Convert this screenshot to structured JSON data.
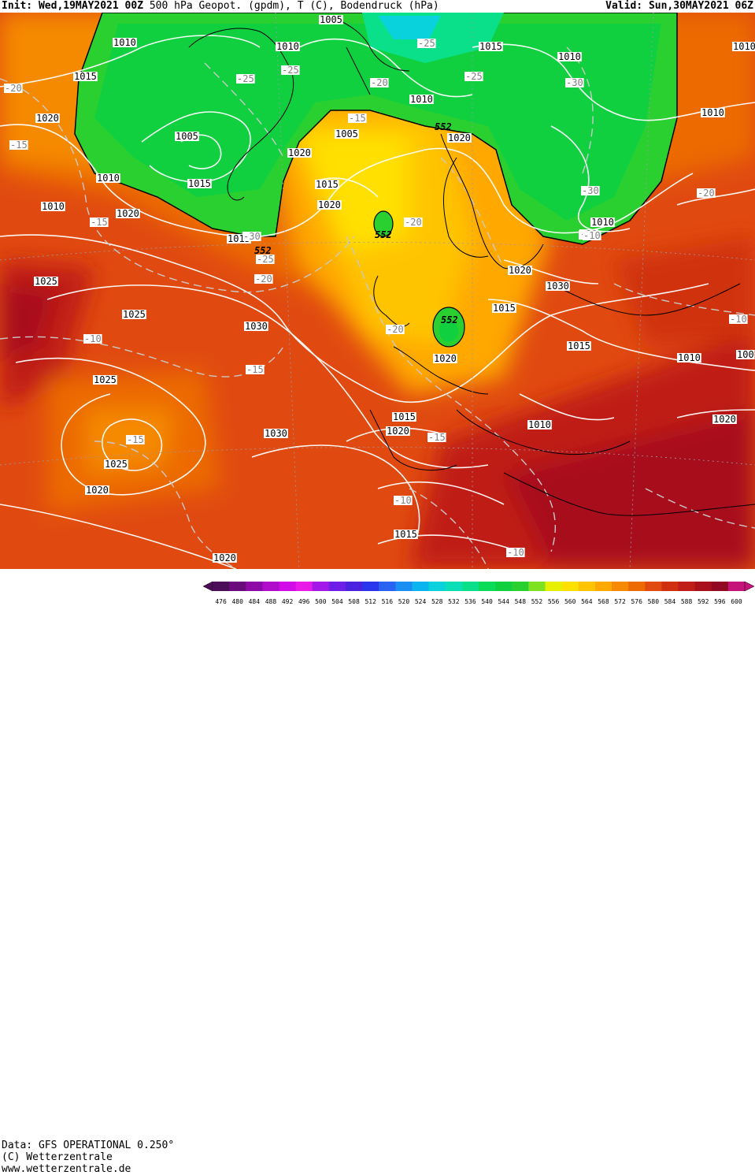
{
  "header": {
    "init_prefix": "Init:",
    "init_value": "Wed,19MAY2021 00Z",
    "title": "500 hPa Geopot. (gpdm), T (C), Bodendruck (hPa)",
    "valid_prefix": "Valid:",
    "valid_value": "Sun,30MAY2021 06Z"
  },
  "footer": {
    "data_line": "Data: GFS OPERATIONAL 0.250°",
    "copyright_line": "(C) Wetterzentrale",
    "url_line": "www.wetterzentrale.de"
  },
  "colorbar": {
    "labels": [
      "476",
      "480",
      "484",
      "488",
      "492",
      "496",
      "500",
      "504",
      "508",
      "512",
      "516",
      "520",
      "524",
      "528",
      "532",
      "536",
      "540",
      "544",
      "548",
      "552",
      "556",
      "560",
      "564",
      "568",
      "572",
      "576",
      "580",
      "584",
      "588",
      "592",
      "596",
      "600"
    ],
    "colors": [
      "#4b0d57",
      "#6a0a7c",
      "#8e0aa6",
      "#b00ccb",
      "#d20ce8",
      "#e71ae7",
      "#a31ae8",
      "#6e1ee6",
      "#4a22e0",
      "#2a36ec",
      "#2a62f2",
      "#1a8ef2",
      "#0ab4ee",
      "#0ad2dc",
      "#0ae0b8",
      "#0ae08a",
      "#0adc5a",
      "#10d040",
      "#2ad030",
      "#7fe21e",
      "#e6f000",
      "#ffe000",
      "#ffc400",
      "#ffa800",
      "#f58a00",
      "#ec6a00",
      "#e04a10",
      "#d03010",
      "#c01c18",
      "#a8101c",
      "#920a22",
      "#c4147c"
    ]
  },
  "map": {
    "pressure_labels": [
      {
        "t": "1005"
      },
      {
        "t": "1010"
      },
      {
        "t": "1010"
      },
      {
        "t": "1015"
      },
      {
        "t": "1010"
      },
      {
        "t": "1015"
      },
      {
        "t": "1020"
      },
      {
        "t": "1005"
      },
      {
        "t": "1005"
      },
      {
        "t": "1020"
      },
      {
        "t": "1010"
      },
      {
        "t": "1020"
      },
      {
        "t": "1010"
      },
      {
        "t": "1015"
      },
      {
        "t": "1010"
      },
      {
        "t": "1015"
      },
      {
        "t": "1020"
      },
      {
        "t": "1015"
      },
      {
        "t": "1020"
      },
      {
        "t": "1010"
      },
      {
        "t": "1025"
      },
      {
        "t": "1020"
      },
      {
        "t": "1025"
      },
      {
        "t": "1030"
      },
      {
        "t": "1030"
      },
      {
        "t": "1015"
      },
      {
        "t": "1015"
      },
      {
        "t": "1010"
      },
      {
        "t": "1010"
      },
      {
        "t": "1010"
      },
      {
        "t": "1025"
      },
      {
        "t": "1020"
      },
      {
        "t": "1020"
      },
      {
        "t": "1030"
      },
      {
        "t": "1015"
      },
      {
        "t": "1025"
      },
      {
        "t": "1020"
      },
      {
        "t": "1020"
      },
      {
        "t": "1010"
      },
      {
        "t": "1015"
      },
      {
        "t": "1020"
      },
      {
        "t": "100"
      }
    ],
    "temp_labels": [
      {
        "t": "-25"
      },
      {
        "t": "-20"
      },
      {
        "t": "-25"
      },
      {
        "t": "-25"
      },
      {
        "t": "-15"
      },
      {
        "t": "-20"
      },
      {
        "t": "-25"
      },
      {
        "t": "-30"
      },
      {
        "t": "-15"
      },
      {
        "t": "-30"
      },
      {
        "t": "-25"
      },
      {
        "t": "-20"
      },
      {
        "t": "-15"
      },
      {
        "t": "-30"
      },
      {
        "t": "-10"
      },
      {
        "t": "-25"
      },
      {
        "t": "-20"
      },
      {
        "t": "-20"
      },
      {
        "t": "-20"
      },
      {
        "t": "-10"
      },
      {
        "t": "-15"
      },
      {
        "t": "-15"
      },
      {
        "t": "-15"
      },
      {
        "t": "-10"
      },
      {
        "t": "-10"
      },
      {
        "t": "-10"
      },
      {
        "t": "-10"
      },
      {
        "t": "-20"
      }
    ],
    "geopot_labels": [
      {
        "t": "552"
      },
      {
        "t": "552"
      },
      {
        "t": "552"
      },
      {
        "t": "552"
      }
    ]
  }
}
